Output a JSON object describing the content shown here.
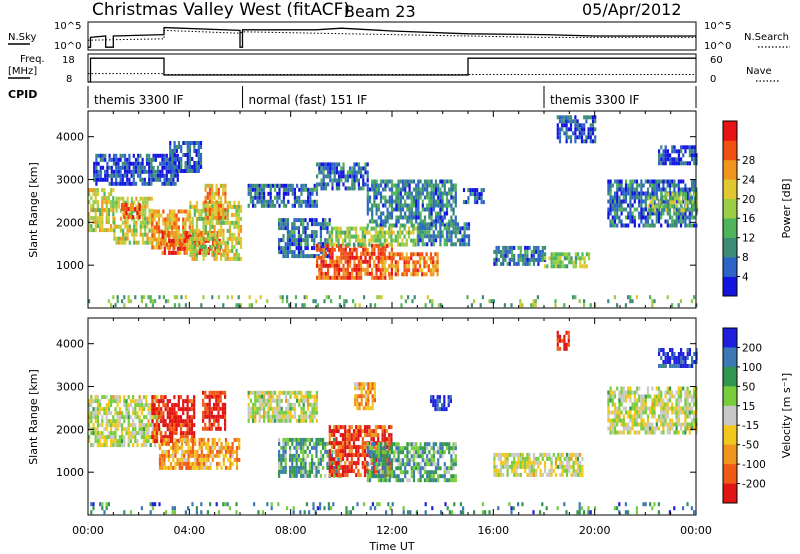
{
  "header": {
    "station": "Christmas Valley West (fitACF)",
    "beam": "Beam 23",
    "date": "05/Apr/2012"
  },
  "left_labels": {
    "nsky": "N.Sky",
    "freq_line1": "Freq.",
    "freq_line2": "[MHz]",
    "cpid": "CPID"
  },
  "right_labels": {
    "nsearch": "N.Search",
    "nave": "Nave"
  },
  "noise_axis": {
    "ticks": [
      "10^5",
      "10^0"
    ]
  },
  "freq_axis": {
    "left_ticks": [
      "18",
      "8"
    ],
    "right_ticks": [
      "60",
      "0"
    ]
  },
  "cpid_segments": [
    {
      "label": "themis 3300 IF",
      "start": 0.0,
      "end": 6.1
    },
    {
      "label": "normal (fast) 151 IF",
      "start": 6.1,
      "end": 18.0
    },
    {
      "label": "themis 3300 IF",
      "start": 18.0,
      "end": 24.0
    }
  ],
  "chart_data": [
    {
      "type": "line",
      "name": "noise-panel",
      "x_unit": "hours UT",
      "x_range": [
        0,
        24
      ],
      "series": [
        {
          "name": "N.Sky",
          "style": "solid",
          "x": [
            0,
            0.1,
            0.1,
            0.7,
            0.7,
            1.0,
            1.0,
            3.0,
            3.0,
            6.0,
            6.0,
            6.1,
            6.1,
            9.0,
            10.0,
            12.0,
            15.0,
            18.0,
            20.0,
            22.0,
            24.0
          ],
          "y": [
            0.1,
            0.1,
            0.45,
            0.5,
            0.1,
            0.1,
            0.5,
            0.55,
            0.8,
            0.7,
            0.1,
            0.1,
            0.72,
            0.72,
            0.78,
            0.68,
            0.58,
            0.55,
            0.5,
            0.5,
            0.5
          ]
        },
        {
          "name": "N.Search",
          "style": "dotted",
          "x": [
            0,
            3.0,
            3.0,
            6.0,
            6.1,
            12.0,
            15.0,
            18.0,
            24.0
          ],
          "y": [
            0.35,
            0.4,
            0.7,
            0.6,
            0.65,
            0.55,
            0.5,
            0.45,
            0.45
          ]
        }
      ]
    },
    {
      "type": "line",
      "name": "frequency-panel",
      "x_unit": "hours UT",
      "x_range": [
        0,
        24
      ],
      "series": [
        {
          "name": "Freq",
          "unit": "MHz",
          "ylim": [
            8,
            18
          ],
          "style": "solid",
          "x": [
            0,
            0.1,
            0.1,
            3.0,
            3.0,
            6.1,
            6.1,
            15.0,
            15.0,
            24.0
          ],
          "y": [
            8,
            8,
            16.5,
            16.5,
            10.5,
            10.5,
            10.5,
            10.5,
            16.5,
            16.5
          ]
        },
        {
          "name": "Nave",
          "ylim": [
            0,
            60
          ],
          "style": "dotted",
          "x": [
            0,
            3.0,
            3.0,
            6.1,
            6.1,
            24.0
          ],
          "y": [
            18,
            18,
            16,
            16,
            16,
            16
          ]
        }
      ]
    },
    {
      "type": "heatmap",
      "name": "power-panel",
      "ylabel": "Slant Range [km]",
      "x_range": [
        0,
        24
      ],
      "ylim": [
        0,
        4600
      ],
      "y_ticks": [
        1000,
        2000,
        3000,
        4000
      ],
      "colorbar": {
        "label": "Power [dB]",
        "ticks": [
          4,
          8,
          12,
          16,
          20,
          24,
          28
        ],
        "colors": [
          "#1414e0",
          "#2d64c8",
          "#3c8c78",
          "#50b45a",
          "#9bcd46",
          "#e1c832",
          "#f0961e",
          "#f05014",
          "#e61414"
        ]
      },
      "regions": [
        {
          "t": [
            0.0,
            1.0
          ],
          "r": [
            1800,
            2800
          ],
          "level": 0.55
        },
        {
          "t": [
            1.0,
            2.5
          ],
          "r": [
            1500,
            2600
          ],
          "level": 0.55
        },
        {
          "t": [
            1.3,
            2.0
          ],
          "r": [
            2150,
            2450
          ],
          "level": 0.85
        },
        {
          "t": [
            2.5,
            4.0
          ],
          "r": [
            1400,
            2300
          ],
          "level": 0.7
        },
        {
          "t": [
            2.9,
            5.2
          ],
          "r": [
            1250,
            1800
          ],
          "level": 0.82
        },
        {
          "t": [
            4.0,
            6.0
          ],
          "r": [
            1100,
            2500
          ],
          "level": 0.55
        },
        {
          "t": [
            4.6,
            5.4
          ],
          "r": [
            2100,
            2900
          ],
          "level": 0.7
        },
        {
          "t": [
            0.2,
            3.5
          ],
          "r": [
            2900,
            3600
          ],
          "level": 0.12
        },
        {
          "t": [
            3.2,
            4.5
          ],
          "r": [
            3200,
            3900
          ],
          "level": 0.15
        },
        {
          "t": [
            6.3,
            9.0
          ],
          "r": [
            2400,
            2900
          ],
          "level": 0.2
        },
        {
          "t": [
            9.0,
            11.0
          ],
          "r": [
            2800,
            3400
          ],
          "level": 0.2
        },
        {
          "t": [
            11.0,
            14.5
          ],
          "r": [
            1900,
            3000
          ],
          "level": 0.25
        },
        {
          "t": [
            7.5,
            9.5
          ],
          "r": [
            1200,
            2100
          ],
          "level": 0.2
        },
        {
          "t": [
            9.0,
            12.0
          ],
          "r": [
            700,
            1500
          ],
          "level": 0.85
        },
        {
          "t": [
            11.5,
            13.8
          ],
          "r": [
            800,
            1300
          ],
          "level": 0.75
        },
        {
          "t": [
            9.5,
            13.0
          ],
          "r": [
            1450,
            1900
          ],
          "level": 0.5
        },
        {
          "t": [
            13.0,
            15.0
          ],
          "r": [
            1500,
            2000
          ],
          "level": 0.25
        },
        {
          "t": [
            16.0,
            18.0
          ],
          "r": [
            1050,
            1450
          ],
          "level": 0.22
        },
        {
          "t": [
            18.0,
            19.8
          ],
          "r": [
            950,
            1300
          ],
          "level": 0.45
        },
        {
          "t": [
            18.5,
            20.0
          ],
          "r": [
            3900,
            4500
          ],
          "level": 0.15
        },
        {
          "t": [
            20.5,
            24.0
          ],
          "r": [
            1900,
            3000
          ],
          "level": 0.2
        },
        {
          "t": [
            22.0,
            24.0
          ],
          "r": [
            2300,
            2700
          ],
          "level": 0.45
        },
        {
          "t": [
            22.5,
            24.0
          ],
          "r": [
            3400,
            3800
          ],
          "level": 0.12
        },
        {
          "t": [
            14.8,
            15.6
          ],
          "r": [
            2500,
            2800
          ],
          "level": 0.2
        },
        {
          "t": [
            0.0,
            24.0
          ],
          "r": [
            80,
            300
          ],
          "level": 0.4,
          "sparse": true
        }
      ]
    },
    {
      "type": "heatmap",
      "name": "velocity-panel",
      "xlabel": "Time UT",
      "ylabel": "Slant Range [km]",
      "x_range": [
        0,
        24
      ],
      "ylim": [
        0,
        4600
      ],
      "y_ticks": [
        1000,
        2000,
        3000,
        4000
      ],
      "x_tick_labels": [
        "00:00",
        "04:00",
        "08:00",
        "12:00",
        "16:00",
        "20:00",
        "00:00"
      ],
      "colorbar": {
        "label": "Velocity [m s⁻¹]",
        "ticks": [
          "200",
          "100",
          "50",
          "15",
          "-15",
          "-50",
          "-100",
          "-200"
        ],
        "colors": [
          "#1e1edc",
          "#3c78b4",
          "#329650",
          "#78cd3c",
          "#c8c8c8",
          "#f0c81e",
          "#f0961e",
          "#f05a14",
          "#e11414"
        ]
      },
      "regions": [
        {
          "t": [
            0.0,
            2.8
          ],
          "r": [
            1600,
            2800
          ],
          "level": 0.5
        },
        {
          "t": [
            2.5,
            4.2
          ],
          "r": [
            1700,
            2800
          ],
          "level": 0.95
        },
        {
          "t": [
            4.5,
            5.4
          ],
          "r": [
            2000,
            2900
          ],
          "level": 0.95
        },
        {
          "t": [
            2.8,
            6.0
          ],
          "r": [
            1100,
            1800
          ],
          "level": 0.7
        },
        {
          "t": [
            6.3,
            9.0
          ],
          "r": [
            2200,
            2900
          ],
          "level": 0.5
        },
        {
          "t": [
            7.5,
            10.0
          ],
          "r": [
            900,
            1800
          ],
          "level": 0.3
        },
        {
          "t": [
            9.5,
            12.0
          ],
          "r": [
            900,
            2100
          ],
          "level": 0.9
        },
        {
          "t": [
            11.0,
            14.5
          ],
          "r": [
            800,
            1700
          ],
          "level": 0.3
        },
        {
          "t": [
            10.5,
            11.3
          ],
          "r": [
            2500,
            3100
          ],
          "level": 0.7
        },
        {
          "t": [
            13.5,
            14.3
          ],
          "r": [
            2500,
            2800
          ],
          "level": 0.05
        },
        {
          "t": [
            16.0,
            19.5
          ],
          "r": [
            950,
            1450
          ],
          "level": 0.5
        },
        {
          "t": [
            20.5,
            24.0
          ],
          "r": [
            1900,
            3000
          ],
          "level": 0.5
        },
        {
          "t": [
            22.5,
            24.0
          ],
          "r": [
            3500,
            3900
          ],
          "level": 0.05
        },
        {
          "t": [
            18.5,
            19.0
          ],
          "r": [
            3900,
            4300
          ],
          "level": 0.95
        },
        {
          "t": [
            0.0,
            24.0
          ],
          "r": [
            80,
            300
          ],
          "level": 0.25,
          "sparse": true
        }
      ]
    }
  ]
}
